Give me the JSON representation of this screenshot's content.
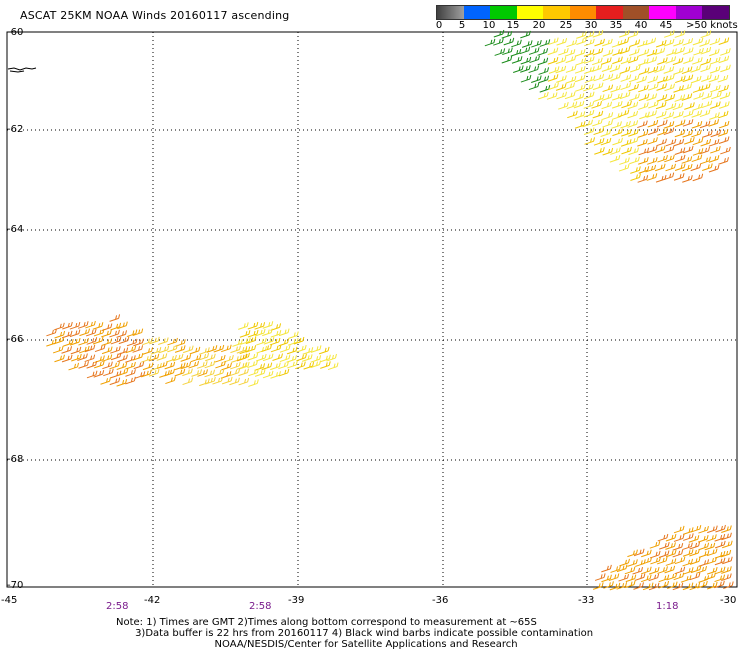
{
  "title": "ASCAT 25KM NOAA Winds 20160117 ascending",
  "legend": {
    "colors": [
      "#5a5a5a",
      "#00c8ff",
      "#0064ff",
      "#00c800",
      "#ffff00",
      "#ffc800",
      "#ff8c00",
      "#e61e1e",
      "#a05028",
      "#ff00ff",
      "#a000d2",
      "#5a0078"
    ],
    "labels": [
      "0",
      "5",
      "10",
      "15",
      "20",
      "25",
      "30",
      "35",
      "40",
      "45",
      ">50 knots"
    ]
  },
  "axes": {
    "longitudes": [
      "-45",
      "-42",
      "-39",
      "-36",
      "-33",
      "-30"
    ],
    "latitudes": [
      "-60",
      "-62",
      "-64",
      "-66",
      "-68",
      "-70"
    ]
  },
  "pass_times": [
    "2:58",
    "2:58",
    "1:18"
  ],
  "notes": [
    "Note: 1) Times are GMT 2)Times along bottom correspond to measurement at ~65S",
    "      3)Data buffer is 22 hrs from 20160117 4) Black wind barbs indicate possible contamination",
    "                               NOAA/NESDIS/Center for Satellite Applications and Research"
  ]
}
